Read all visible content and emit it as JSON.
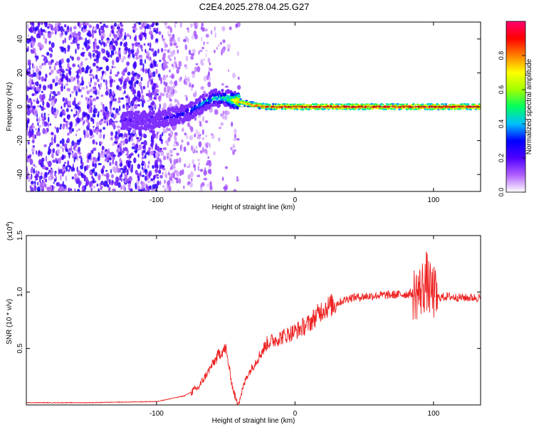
{
  "page_title": "C2E4.2025.278.04.25.G27",
  "chart_data": [
    {
      "type": "heatmap",
      "title": "C2E4.2025.278.04.25.G27",
      "xlabel": "Height of straight line (km)",
      "ylabel": "Frequency (Hz)",
      "xlim": [
        -194,
        134
      ],
      "ylim": [
        -50,
        50
      ],
      "x_ticks": [
        -100,
        0,
        100
      ],
      "y_ticks": [
        -40,
        -20,
        0,
        20,
        40
      ],
      "ridge": {
        "description_points_x": [
          -100,
          -90,
          -80,
          -70,
          -60,
          -50,
          -40,
          -30,
          -20,
          -10,
          0,
          50,
          100,
          134
        ],
        "frequency": [
          -8,
          -6,
          -4,
          0,
          5,
          5,
          3,
          1,
          0,
          0,
          0,
          0,
          0,
          0
        ],
        "amplitude": [
          0.2,
          0.25,
          0.3,
          0.4,
          0.45,
          0.5,
          0.8,
          0.85,
          0.9,
          0.95,
          0.95,
          0.95,
          0.95,
          0.95
        ]
      },
      "colorbar": {
        "label": "Normalized spectral amplitude",
        "range": [
          0,
          1
        ],
        "ticks": [
          "0.0",
          "0.2",
          "0.4",
          "0.6",
          "0.8"
        ],
        "colors": [
          "#ffffff",
          "#b060ff",
          "#5000ff",
          "#0000ff",
          "#00c0ff",
          "#00ff60",
          "#a0ff00",
          "#ffff00",
          "#ff8000",
          "#ff0000",
          "#ff0070"
        ]
      }
    },
    {
      "type": "line",
      "title": "",
      "xlabel": "Height of straight line (km)",
      "ylabel": "SNR (10 * v/v)",
      "y_multiplier": "(x10",
      "y_multiplier_exp": "4",
      "y_multiplier_close": ")",
      "xlim": [
        -194,
        134
      ],
      "ylim": [
        0,
        1.5
      ],
      "x_ticks": [
        -100,
        0,
        100
      ],
      "y_ticks": [
        "0.5",
        "1.0",
        "1.5"
      ],
      "line_color": "#ee2222",
      "series": [
        {
          "name": "SNR",
          "x": [
            -194,
            -150,
            -100,
            -80,
            -70,
            -65,
            -60,
            -55,
            -50,
            -45,
            -42,
            -40,
            -35,
            -30,
            -25,
            -20,
            -10,
            0,
            10,
            20,
            30,
            40,
            60,
            80,
            90,
            95,
            98,
            100,
            102,
            110,
            120,
            134
          ],
          "y": [
            0.02,
            0.02,
            0.03,
            0.08,
            0.15,
            0.25,
            0.35,
            0.45,
            0.5,
            0.15,
            0.02,
            0.05,
            0.25,
            0.35,
            0.45,
            0.55,
            0.6,
            0.65,
            0.72,
            0.85,
            0.9,
            0.95,
            0.97,
            0.98,
            1.0,
            1.1,
            1.0,
            1.0,
            0.95,
            0.96,
            0.95,
            0.95
          ]
        }
      ]
    }
  ]
}
